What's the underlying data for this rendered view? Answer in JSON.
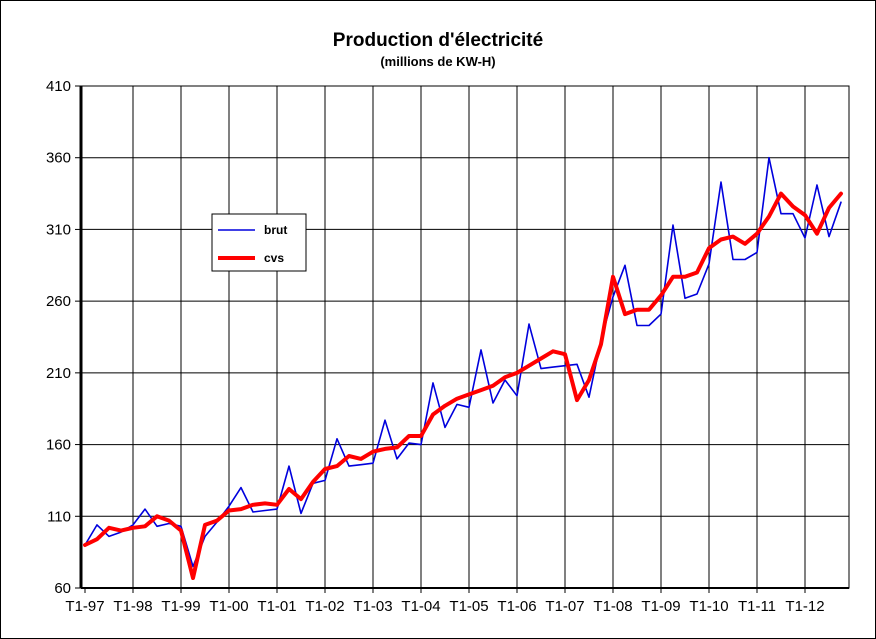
{
  "chart_data": {
    "type": "line",
    "title": "Production d'électricité",
    "subtitle": "(millions  de KW-H)",
    "xlabel": "",
    "ylabel": "",
    "ylim": [
      60,
      410
    ],
    "yticks": [
      60,
      110,
      160,
      210,
      260,
      310,
      360,
      410
    ],
    "xtick_labels": [
      "T1-97",
      "T1-98",
      "T1-99",
      "T1-00",
      "T1-01",
      "T1-02",
      "T1-03",
      "T1-04",
      "T1-05",
      "T1-06",
      "T1-07",
      "T1-08",
      "T1-09",
      "T1-10",
      "T1-11",
      "T1-12"
    ],
    "grid": true,
    "legend_placement": "upper-left",
    "x": [
      "T1-97",
      "T2-97",
      "T3-97",
      "T4-97",
      "T1-98",
      "T2-98",
      "T3-98",
      "T4-98",
      "T1-99",
      "T2-99",
      "T3-99",
      "T4-99",
      "T1-00",
      "T2-00",
      "T3-00",
      "T4-00",
      "T1-01",
      "T2-01",
      "T3-01",
      "T4-01",
      "T1-02",
      "T2-02",
      "T3-02",
      "T4-02",
      "T1-03",
      "T2-03",
      "T3-03",
      "T4-03",
      "T1-04",
      "T2-04",
      "T3-04",
      "T4-04",
      "T1-05",
      "T2-05",
      "T3-05",
      "T4-05",
      "T1-06",
      "T2-06",
      "T3-06",
      "T4-06",
      "T1-07",
      "T2-07",
      "T3-07",
      "T4-07",
      "T1-08",
      "T2-08",
      "T3-08",
      "T4-08",
      "T1-09",
      "T2-09",
      "T3-09",
      "T4-09",
      "T1-10",
      "T2-10",
      "T3-10",
      "T4-10",
      "T1-11",
      "T2-11",
      "T3-11",
      "T4-11",
      "T1-12",
      "T2-12",
      "T3-12",
      "T4-12"
    ],
    "series": [
      {
        "name": "brut",
        "color": "#0000dd",
        "values": [
          90,
          104,
          96,
          99,
          104,
          115,
          103,
          105,
          103,
          75,
          96,
          106,
          117,
          130,
          113,
          114,
          115,
          145,
          112,
          133,
          135,
          164,
          145,
          146,
          147,
          177,
          150,
          161,
          160,
          203,
          172,
          188,
          186,
          226,
          189,
          205,
          194,
          244,
          213,
          214,
          215,
          216,
          193,
          233,
          263,
          285,
          243,
          243,
          251,
          313,
          262,
          265,
          286,
          343,
          289,
          289,
          294,
          360,
          321,
          321,
          304,
          341,
          305,
          329
        ]
      },
      {
        "name": "cvs",
        "color": "#ff0000",
        "values": [
          90,
          94,
          102,
          100,
          102,
          103,
          110,
          107,
          100,
          67,
          104,
          107,
          114,
          115,
          118,
          119,
          118,
          129,
          122,
          134,
          143,
          145,
          152,
          150,
          155,
          157,
          158,
          166,
          166,
          181,
          187,
          192,
          195,
          198,
          201,
          207,
          210,
          215,
          220,
          225,
          223,
          191,
          205,
          230,
          277,
          251,
          254,
          254,
          264,
          277,
          277,
          280,
          297,
          303,
          305,
          300,
          307,
          319,
          335,
          326,
          320,
          307,
          325,
          335
        ]
      }
    ]
  }
}
